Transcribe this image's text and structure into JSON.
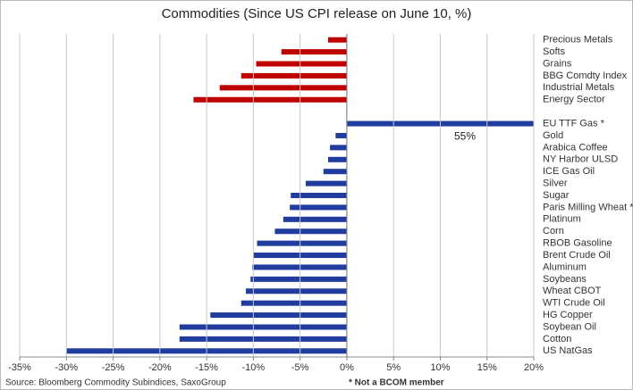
{
  "chart_data": {
    "type": "bar",
    "orientation": "horizontal",
    "title": "Commodities (Since US CPI release on June 10, %)",
    "categories": [
      "Precious Metals",
      "Softs",
      "Grains",
      "BBG Comdty Index",
      "Industrial Metals",
      "Energy Sector",
      null,
      "EU TTF Gas *",
      "Gold",
      "Arabica Coffee",
      "NY Harbor ULSD",
      "ICE Gas Oil",
      "Silver",
      "Sugar",
      "Paris Milling Wheat *",
      "Platinum",
      "Corn",
      "RBOB Gasoline",
      "Brent Crude Oil",
      "Aluminum",
      "Soybeans",
      "Wheat CBOT",
      "WTI Crude Oil",
      "HG Copper",
      "Soybean Oil",
      "Cotton",
      "US NatGas"
    ],
    "values": [
      -2.0,
      -7.0,
      -9.7,
      -11.3,
      -13.6,
      -16.4,
      null,
      55,
      -1.2,
      -1.8,
      -2.0,
      -2.5,
      -4.4,
      -6.0,
      -6.1,
      -6.8,
      -7.7,
      -9.6,
      -10.0,
      -10.1,
      -10.3,
      -10.8,
      -11.3,
      -14.6,
      -17.9,
      -17.9,
      -30.0
    ],
    "value_labels": [
      null,
      null,
      null,
      null,
      null,
      null,
      null,
      "55%",
      null,
      null,
      null,
      null,
      null,
      null,
      null,
      null,
      null,
      null,
      null,
      null,
      null,
      null,
      null,
      null,
      null,
      null,
      null
    ],
    "colors": [
      "#c00000",
      "#c00000",
      "#c00000",
      "#c00000",
      "#c00000",
      "#c00000",
      null,
      "#1f3c9e",
      "#1f3c9e",
      "#1f3c9e",
      "#1f3c9e",
      "#1f3c9e",
      "#1f3c9e",
      "#1f3c9e",
      "#1f3c9e",
      "#1f3c9e",
      "#1f3c9e",
      "#1f3c9e",
      "#1f3c9e",
      "#1f3c9e",
      "#1f3c9e",
      "#1f3c9e",
      "#1f3c9e",
      "#1f3c9e",
      "#1f3c9e",
      "#1f3c9e",
      "#1f3c9e"
    ],
    "xlim": [
      -35,
      20
    ],
    "xticks": [
      {
        "value": -35,
        "label": "-35%"
      },
      {
        "value": -30,
        "label": "-30%"
      },
      {
        "value": -25,
        "label": "-25%"
      },
      {
        "value": -20,
        "label": "-20%"
      },
      {
        "value": -15,
        "label": "-15%"
      },
      {
        "value": -10,
        "label": "-10%"
      },
      {
        "value": -5,
        "label": "-5%"
      },
      {
        "value": 0,
        "label": "0%"
      },
      {
        "value": 5,
        "label": "5%"
      },
      {
        "value": 10,
        "label": "10%"
      },
      {
        "value": 15,
        "label": "15%"
      },
      {
        "value": 20,
        "label": "20%"
      }
    ],
    "grid": true,
    "source": "Source: Bloomberg Commodity Subindices, SaxoGroup",
    "footnote": "* Not a BCOM member"
  }
}
